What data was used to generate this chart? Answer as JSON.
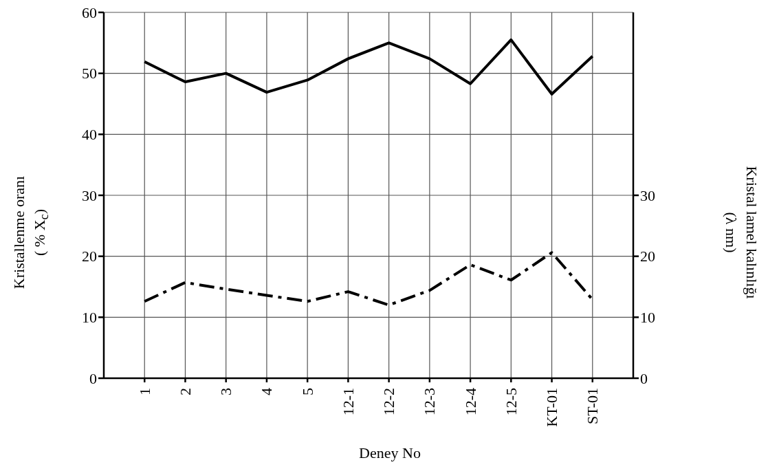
{
  "chart_data": {
    "type": "line",
    "xlabel": "Deney No",
    "ylabel": "Kristallenme oranı\n( % X$_{c}$)",
    "y2label": "Kristal lamel kalınlığı\n(λ nm)",
    "categories": [
      "1",
      "2",
      "3",
      "4",
      "5",
      "12-1",
      "12-2",
      "12-3",
      "12-4",
      "12-5",
      "KT-01",
      "ST-01"
    ],
    "series": [
      {
        "color": "#000000",
        "line_style": "solid",
        "values": [
          51.9,
          48.6,
          50.0,
          46.9,
          48.9,
          52.4,
          55.0,
          52.4,
          48.3,
          55.5,
          46.6,
          52.8
        ]
      },
      {
        "color": "#000000",
        "line_style": "dashed",
        "axis": "y2",
        "values": [
          12.6,
          15.7,
          14.6,
          13.6,
          12.6,
          14.2,
          12.0,
          14.4,
          18.6,
          16.1,
          20.6,
          12.9
        ]
      }
    ],
    "ylim": [
      0,
      60
    ],
    "yticks": [
      0,
      10,
      20,
      30,
      40,
      50,
      60
    ],
    "y2lim": [
      0,
      60
    ],
    "y2ticks": [
      0,
      10,
      20,
      30
    ],
    "grid": true,
    "marker": "none"
  }
}
